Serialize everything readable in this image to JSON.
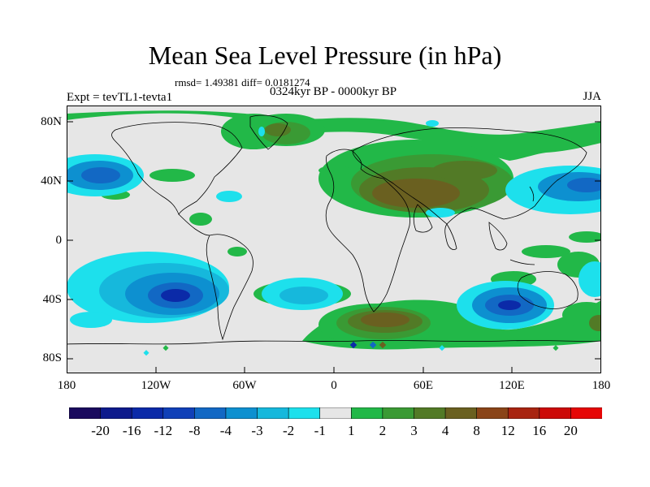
{
  "title": "Mean Sea Level Pressure (in hPa)",
  "stats": "rmsd= 1.49381 diff= 0.0181274",
  "period": "0324kyr BP - 0000kyr BP",
  "expt": "Expt = tevTL1-tevta1",
  "season": "JJA",
  "map": {
    "lat_ticks": [
      "80N",
      "40N",
      "0",
      "40S",
      "80S"
    ],
    "lon_ticks": [
      "180",
      "120W",
      "60W",
      "0",
      "60E",
      "120E",
      "180"
    ]
  },
  "colorbar": {
    "labels": [
      "-20",
      "-16",
      "-12",
      "-8",
      "-4",
      "-3",
      "-2",
      "-1",
      "1",
      "2",
      "3",
      "4",
      "8",
      "12",
      "16",
      "20"
    ],
    "colors": [
      "#1a0a5e",
      "#0d1a8c",
      "#0b2aa8",
      "#1040b8",
      "#1268c4",
      "#0d90d0",
      "#16b8dc",
      "#1de0ec",
      "#e6e6e6",
      "#22b848",
      "#3a9a34",
      "#527a26",
      "#6a6020",
      "#8a4418",
      "#a82410",
      "#cc0a08",
      "#e60606"
    ]
  },
  "colors": {
    "background": "#e6e6e6",
    "positive_light": "#22b848",
    "positive_mid": "#3a9a34",
    "positive_dark": "#6a6020",
    "negative_light": "#1de0ec",
    "negative_mid": "#0d90d0",
    "negative_dark": "#0b2aa8"
  }
}
